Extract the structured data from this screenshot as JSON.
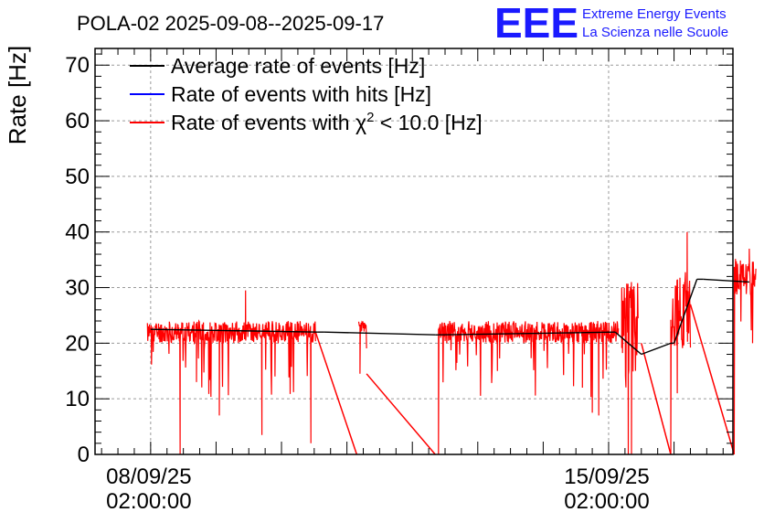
{
  "header": {
    "title": "POLA-02 2025-09-08--2025-09-17",
    "logo": "EEE",
    "org_line1": "Extreme Energy Events",
    "org_line2": "La Scienza nelle Scuole"
  },
  "colors": {
    "average": "#000000",
    "hits": "#0000ff",
    "chi2": "#ff0000",
    "grid": "#9a9a9a",
    "logo": "#1a1aff"
  },
  "chart_data": {
    "type": "line",
    "title": "POLA-02 2025-09-08--2025-09-17",
    "ylabel": "Rate [Hz]",
    "xlabel": "",
    "ylim": [
      0,
      73
    ],
    "yticks": [
      0,
      10,
      20,
      30,
      40,
      50,
      60,
      70
    ],
    "xlim": [
      -0.85,
      8.9
    ],
    "xticks": [
      {
        "x": 0,
        "line1": "08/09/25",
        "line2": "02:00:00"
      },
      {
        "x": 7,
        "line1": "15/09/25",
        "line2": "02:00:00"
      }
    ],
    "x_unit": "days since 08/09/25 02:00:00",
    "grid": true,
    "legend_position": "top-left",
    "legend": [
      {
        "name": "Average rate of events [Hz]",
        "color": "#000000",
        "has_sup": false
      },
      {
        "name": "Rate of events with hits [Hz]",
        "color": "#0000ff",
        "has_sup": false
      },
      {
        "name": "Rate of events with χ",
        "sup": "2",
        "suffix": " < 10.0 [Hz]",
        "color": "#ff0000",
        "has_sup": true
      }
    ],
    "series": [
      {
        "name": "Average rate of events [Hz]",
        "color": "#000000",
        "x": [
          0.0,
          2.55,
          2.65,
          4.35,
          4.4,
          7.1,
          7.5,
          7.95,
          8.0,
          8.35,
          8.45,
          9.15
        ],
        "y": [
          22.5,
          22.0,
          22.0,
          21.5,
          21.5,
          22.0,
          18.0,
          20.0,
          20.0,
          31.5,
          31.5,
          31.0
        ]
      },
      {
        "name": "Rate of events with χ² < 10.0 [Hz]",
        "color": "#ff0000",
        "segments": [
          {
            "x0": -0.05,
            "x1": 2.52,
            "base": 22.0,
            "noise": 2.0,
            "seed": 11,
            "spikes": [
              {
                "x": 0.45,
                "y": 0
              },
              {
                "x": 1.05,
                "y": 7
              },
              {
                "x": 1.45,
                "y": 29.5
              },
              {
                "x": 1.7,
                "y": 3.5
              },
              {
                "x": 2.45,
                "y": 2
              },
              {
                "x": 0.7,
                "y": 13
              },
              {
                "x": 1.9,
                "y": 14
              }
            ]
          },
          {
            "x0": 3.18,
            "x1": 3.3,
            "base": 23.0,
            "noise": 1.0,
            "seed": 23,
            "spikes": [
              {
                "x": 3.2,
                "y": 14.5
              }
            ]
          },
          {
            "x0": 4.4,
            "x1": 7.15,
            "base": 22.0,
            "noise": 2.0,
            "seed": 37,
            "spikes": [
              {
                "x": 4.4,
                "y": 0
              },
              {
                "x": 6.85,
                "y": 7
              },
              {
                "x": 6.75,
                "y": 7.5
              },
              {
                "x": 5.3,
                "y": 15
              },
              {
                "x": 6.6,
                "y": 12
              }
            ]
          },
          {
            "x0": 7.2,
            "x1": 7.45,
            "base": 22.0,
            "noise": 9.0,
            "seed": 51,
            "spikes": [
              {
                "x": 7.35,
                "y": 0
              },
              {
                "x": 7.3,
                "y": 0
              },
              {
                "x": 7.2,
                "y": 30
              }
            ]
          },
          {
            "x0": 7.95,
            "x1": 8.25,
            "base": 26.0,
            "noise": 7.0,
            "seed": 63,
            "spikes": [
              {
                "x": 7.95,
                "y": 0
              },
              {
                "x": 8.2,
                "y": 40
              },
              {
                "x": 8.05,
                "y": 11
              }
            ]
          },
          {
            "x0": 8.92,
            "x1": 9.25,
            "base": 32.0,
            "noise": 3.5,
            "seed": 79,
            "spikes": [
              {
                "x": 8.92,
                "y": 0
              },
              {
                "x": 9.2,
                "y": 20
              },
              {
                "x": 9.15,
                "y": 37
              }
            ]
          }
        ],
        "connectors": [
          {
            "x": [
              2.52,
              3.15
            ],
            "y": [
              22.0,
              0
            ]
          },
          {
            "x": [
              3.3,
              4.35
            ],
            "y": [
              14.5,
              0
            ]
          },
          {
            "x": [
              7.5,
              7.95
            ],
            "y": [
              20.0,
              0
            ]
          },
          {
            "x": [
              8.25,
              8.92
            ],
            "y": [
              27.0,
              0
            ]
          }
        ]
      }
    ]
  }
}
